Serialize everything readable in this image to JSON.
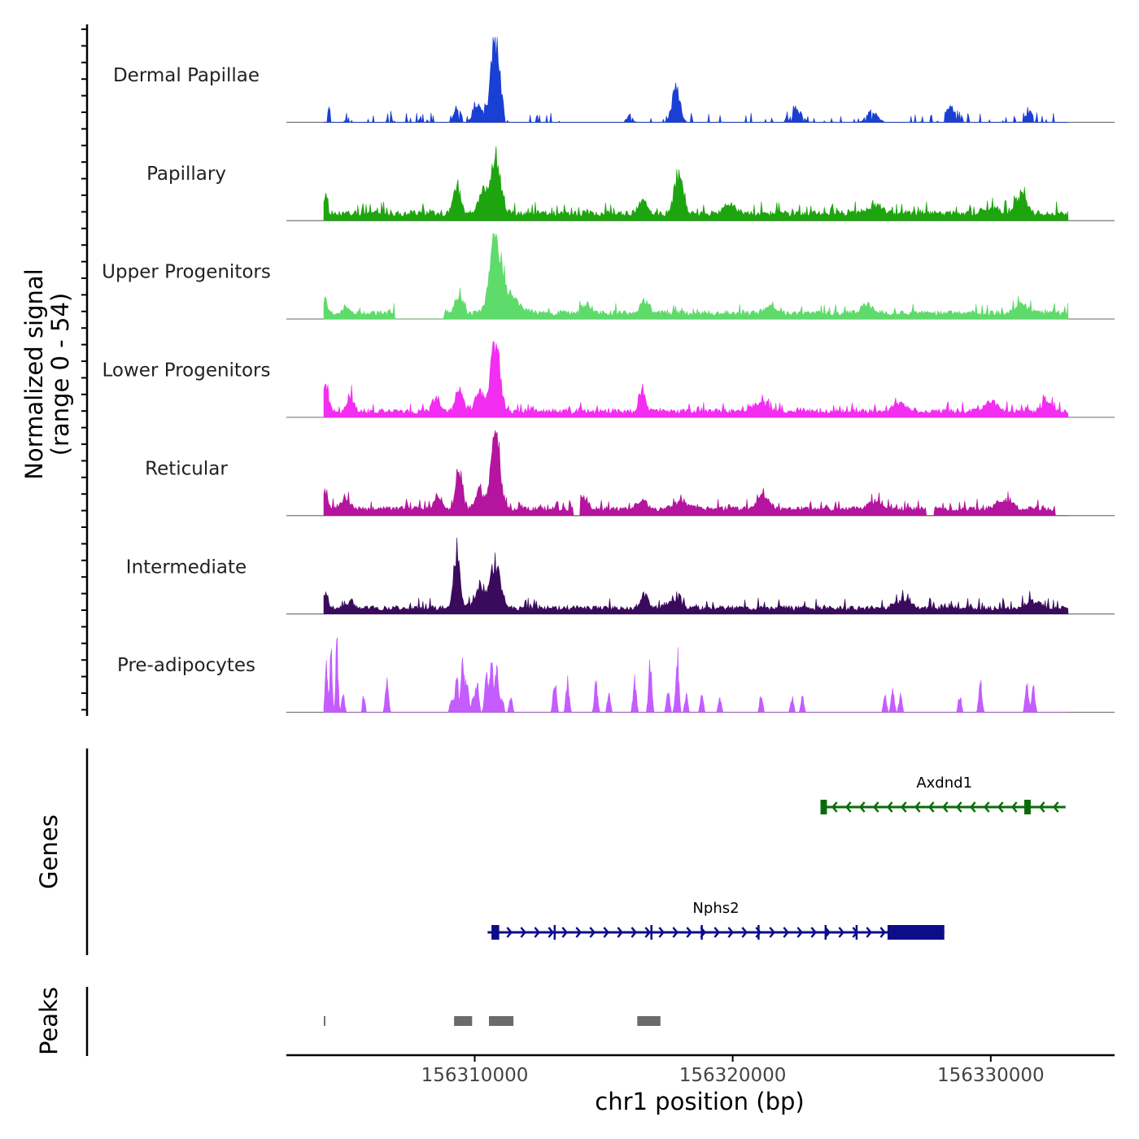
{
  "chart_data": {
    "type": "area",
    "title": "",
    "ylabel_line1": "Normalized signal",
    "ylabel_line2": "(range 0 - 54)",
    "ylim": [
      0,
      54
    ],
    "xlabel": "chr1 position (bp)",
    "xlim": [
      156302700,
      156334800
    ],
    "data_start": 156304150,
    "data_end": 156333000,
    "x_ticks": [
      {
        "value": 156310000,
        "label": "156310000"
      },
      {
        "value": 156320000,
        "label": "156320000"
      },
      {
        "value": 156330000,
        "label": "156330000"
      }
    ],
    "tracks": [
      {
        "name": "Dermal Papillae",
        "color": "#1a3fd4",
        "style": "sparse",
        "baseline": 0.01,
        "noise": 0.07,
        "seed": 11,
        "gaps": [
          [
            156313500,
            156315800
          ],
          [
            156318800,
            156319000
          ],
          [
            156328000,
            156328200
          ],
          [
            156332500,
            156333000
          ]
        ],
        "peaks": [
          [
            156304350,
            9,
            60
          ],
          [
            156305100,
            4,
            80
          ],
          [
            156306700,
            5,
            90
          ],
          [
            156308000,
            5,
            100
          ],
          [
            156309300,
            9,
            110
          ],
          [
            156310100,
            10,
            160
          ],
          [
            156310800,
            54,
            170
          ],
          [
            156316000,
            4,
            120
          ],
          [
            156317800,
            21,
            150
          ],
          [
            156322500,
            7,
            200
          ],
          [
            156325400,
            7,
            200
          ],
          [
            156328400,
            9,
            200
          ],
          [
            156331500,
            6,
            150
          ]
        ]
      },
      {
        "name": "Papillary",
        "color": "#1ea40e",
        "style": "dense",
        "baseline": 0.05,
        "noise": 0.07,
        "seed": 22,
        "gaps": [],
        "peaks": [
          [
            156304200,
            11,
            80
          ],
          [
            156309300,
            19,
            140
          ],
          [
            156310300,
            14,
            150
          ],
          [
            156310800,
            37,
            180
          ],
          [
            156316500,
            8,
            160
          ],
          [
            156317900,
            26,
            160
          ],
          [
            156319900,
            6,
            200
          ],
          [
            156325500,
            5,
            300
          ],
          [
            156330000,
            4,
            300
          ],
          [
            156331200,
            12,
            200
          ]
        ]
      },
      {
        "name": "Upper Progenitors",
        "color": "#5edb6a",
        "style": "dense",
        "baseline": 0.04,
        "noise": 0.06,
        "seed": 33,
        "gaps": [
          [
            156306900,
            156308800
          ]
        ],
        "peaks": [
          [
            156304200,
            9,
            70
          ],
          [
            156305000,
            5,
            120
          ],
          [
            156309400,
            10,
            140
          ],
          [
            156310800,
            50,
            200
          ],
          [
            156311300,
            11,
            400
          ],
          [
            156314300,
            5,
            160
          ],
          [
            156316600,
            8,
            160
          ],
          [
            156321500,
            5,
            200
          ],
          [
            156325200,
            5,
            250
          ],
          [
            156331200,
            5,
            250
          ]
        ]
      },
      {
        "name": "Lower Progenitors",
        "color": "#f42df2",
        "style": "dense",
        "baseline": 0.04,
        "noise": 0.06,
        "seed": 44,
        "gaps": [],
        "peaks": [
          [
            156304200,
            18,
            120
          ],
          [
            156305200,
            9,
            120
          ],
          [
            156308500,
            9,
            140
          ],
          [
            156309400,
            12,
            150
          ],
          [
            156310200,
            13,
            160
          ],
          [
            156310800,
            47,
            160
          ],
          [
            156316500,
            12,
            130
          ],
          [
            156321000,
            5,
            300
          ],
          [
            156326500,
            5,
            300
          ],
          [
            156330000,
            6,
            300
          ],
          [
            156332200,
            5,
            200
          ]
        ]
      },
      {
        "name": "Reticular",
        "color": "#b5149e",
        "style": "dense",
        "baseline": 0.05,
        "noise": 0.06,
        "seed": 55,
        "gaps": [
          [
            156313800,
            156314100
          ],
          [
            156327500,
            156327800
          ],
          [
            156332500,
            156333000
          ]
        ],
        "peaks": [
          [
            156304200,
            13,
            100
          ],
          [
            156305000,
            6,
            150
          ],
          [
            156308600,
            9,
            150
          ],
          [
            156309400,
            22,
            130
          ],
          [
            156310200,
            12,
            160
          ],
          [
            156310800,
            54,
            160
          ],
          [
            156314200,
            8,
            150
          ],
          [
            156316500,
            5,
            200
          ],
          [
            156318000,
            5,
            250
          ],
          [
            156321200,
            8,
            220
          ],
          [
            156325500,
            4,
            300
          ],
          [
            156330500,
            5,
            300
          ]
        ]
      },
      {
        "name": "Intermediate",
        "color": "#3a0a5c",
        "style": "dense",
        "baseline": 0.04,
        "noise": 0.06,
        "seed": 66,
        "gaps": [],
        "peaks": [
          [
            156304200,
            10,
            90
          ],
          [
            156305200,
            5,
            100
          ],
          [
            156309300,
            35,
            120
          ],
          [
            156310200,
            15,
            180
          ],
          [
            156310800,
            27,
            200
          ],
          [
            156316600,
            9,
            140
          ],
          [
            156317700,
            6,
            200
          ],
          [
            156326600,
            5,
            300
          ],
          [
            156331600,
            5,
            250
          ]
        ]
      },
      {
        "name": "Pre-adipocytes",
        "color": "#c45cff",
        "style": "spikes",
        "baseline": 0.0,
        "noise": 0.0,
        "seed": 77,
        "gaps": [],
        "peaks": [
          [
            156304250,
            30,
            50
          ],
          [
            156304430,
            38,
            45
          ],
          [
            156304660,
            42,
            45
          ],
          [
            156304900,
            10,
            60
          ],
          [
            156305700,
            10,
            50
          ],
          [
            156306600,
            19,
            60
          ],
          [
            156309100,
            9,
            60
          ],
          [
            156309300,
            22,
            60
          ],
          [
            156309530,
            28,
            60
          ],
          [
            156309700,
            20,
            60
          ],
          [
            156309950,
            10,
            60
          ],
          [
            156310100,
            16,
            60
          ],
          [
            156310450,
            27,
            60
          ],
          [
            156310650,
            32,
            60
          ],
          [
            156310850,
            28,
            60
          ],
          [
            156311050,
            10,
            60
          ],
          [
            156311400,
            9,
            60
          ],
          [
            156313100,
            20,
            60
          ],
          [
            156313600,
            19,
            60
          ],
          [
            156314700,
            18,
            60
          ],
          [
            156315200,
            12,
            60
          ],
          [
            156316200,
            20,
            60
          ],
          [
            156316800,
            30,
            60
          ],
          [
            156317500,
            12,
            60
          ],
          [
            156317850,
            36,
            60
          ],
          [
            156318200,
            10,
            60
          ],
          [
            156318800,
            10,
            60
          ],
          [
            156319500,
            8,
            60
          ],
          [
            156321100,
            10,
            60
          ],
          [
            156322300,
            9,
            60
          ],
          [
            156322700,
            10,
            60
          ],
          [
            156325900,
            10,
            60
          ],
          [
            156326200,
            13,
            60
          ],
          [
            156326500,
            10,
            60
          ],
          [
            156328800,
            10,
            60
          ],
          [
            156329600,
            18,
            60
          ],
          [
            156331400,
            19,
            60
          ],
          [
            156331650,
            17,
            60
          ]
        ]
      }
    ],
    "genes": [
      {
        "name": "Axdnd1",
        "color": "#0a6b0a",
        "strand": "-",
        "start": 156323500,
        "end": 156332900,
        "exons": [
          [
            156323400,
            156323650
          ],
          [
            156331300,
            156331550
          ]
        ]
      },
      {
        "name": "Nphs2",
        "color": "#0d0d8a",
        "strand": "+",
        "start": 156310500,
        "end": 156328200,
        "exons": [
          [
            156310650,
            156310950
          ],
          [
            156326000,
            156328200
          ]
        ],
        "markers": [
          156313100,
          156316850,
          156318800,
          156321000,
          156323600,
          156324800
        ]
      }
    ],
    "genes_label": "Genes",
    "peaks_label": "Peaks",
    "peak_regions": [
      [
        156304150,
        156304210
      ],
      [
        156309200,
        156309900
      ],
      [
        156310550,
        156311500
      ],
      [
        156316300,
        156317200
      ]
    ],
    "peak_color": "#6b6b6b"
  }
}
